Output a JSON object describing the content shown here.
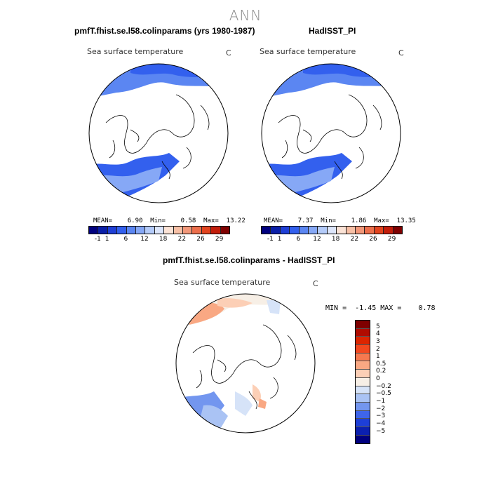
{
  "season": "ANN",
  "panels": [
    {
      "title": "pmfT.fhist.se.l58.colinparams (yrs 1980-1987)",
      "variable": "Sea surface temperature",
      "unit": "C",
      "stats": "MEAN=    6.90  Min=    0.58  Max=  13.22",
      "colorbar_ticks": [
        "-1",
        "1",
        "6",
        "12",
        "18",
        "22",
        "26",
        "29"
      ]
    },
    {
      "title": "HadISST_PI",
      "variable": "Sea surface temperature",
      "unit": "C",
      "stats": "MEAN=    7.37  Min=    1.86  Max=  13.35",
      "colorbar_ticks": [
        "-1",
        "1",
        "6",
        "12",
        "18",
        "22",
        "26",
        "29"
      ]
    }
  ],
  "diff": {
    "title": "pmfT.fhist.se.l58.colinparams - HadISST_PI",
    "variable": "Sea surface temperature",
    "unit": "C",
    "stats": "MIN =  -1.45 MAX =    0.78",
    "colorbar_labels": [
      "5",
      "4",
      "3",
      "2",
      "1",
      "0.5",
      "0.2",
      "0",
      "-0.2",
      "-0.5",
      "-1",
      "-2",
      "-3",
      "-4",
      "-5"
    ]
  },
  "colors": {
    "abs_scale": [
      "#00007f",
      "#0a1fa8",
      "#1f3fd6",
      "#3360ee",
      "#5b86f2",
      "#86a8f6",
      "#b4cbf9",
      "#dde6fb",
      "#fbe3d6",
      "#f7c0a6",
      "#f2987a",
      "#ec6f4c",
      "#e2441f",
      "#c21d0a",
      "#7f0000"
    ],
    "diff_scale": [
      "#7f0000",
      "#b00c00",
      "#dc2500",
      "#f2481f",
      "#f6794f",
      "#f9a883",
      "#fccfb6",
      "#f7efe6",
      "#d6e3f8",
      "#aac3f4",
      "#7396ef",
      "#3f65ea",
      "#1d3fd8",
      "#0b20b0",
      "#00007f"
    ]
  }
}
